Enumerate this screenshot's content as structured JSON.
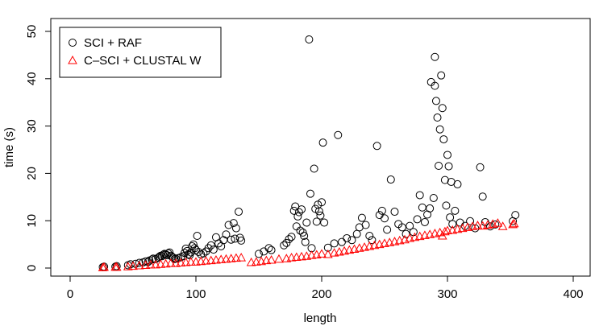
{
  "chart_data": {
    "type": "scatter",
    "title": "",
    "xlabel": "length",
    "ylabel": "time (s)",
    "xlim": [
      0,
      400
    ],
    "ylim": [
      0,
      50
    ],
    "x_ticks": [
      "0",
      "100",
      "200",
      "300",
      "400"
    ],
    "y_ticks": [
      "0",
      "10",
      "20",
      "30",
      "40",
      "50"
    ],
    "grid": false,
    "legend": {
      "position": "top-left"
    },
    "series": [
      {
        "name": "SCI + RAF",
        "marker": "circle",
        "color": "#000000",
        "points": [
          [
            26,
            0.2
          ],
          [
            27,
            0.3
          ],
          [
            36,
            0.3
          ],
          [
            37,
            0.4
          ],
          [
            46,
            0.6
          ],
          [
            48,
            0.8
          ],
          [
            52,
            0.9
          ],
          [
            55,
            1.1
          ],
          [
            58,
            1.2
          ],
          [
            60,
            1.4
          ],
          [
            62,
            1.3
          ],
          [
            63,
            1.6
          ],
          [
            65,
            1.8
          ],
          [
            66,
            2.0
          ],
          [
            68,
            1.9
          ],
          [
            70,
            2.2
          ],
          [
            71,
            2.4
          ],
          [
            72,
            2.6
          ],
          [
            73,
            2.5
          ],
          [
            74,
            2.8
          ],
          [
            75,
            3.0
          ],
          [
            76,
            2.9
          ],
          [
            77,
            2.7
          ],
          [
            78,
            3.1
          ],
          [
            79,
            3.3
          ],
          [
            80,
            2.6
          ],
          [
            81,
            2.4
          ],
          [
            82,
            2.2
          ],
          [
            83,
            1.9
          ],
          [
            84,
            2.0
          ],
          [
            86,
            2.1
          ],
          [
            88,
            2.3
          ],
          [
            90,
            2.5
          ],
          [
            91,
            3.2
          ],
          [
            92,
            4.1
          ],
          [
            93,
            3.6
          ],
          [
            94,
            2.9
          ],
          [
            95,
            2.7
          ],
          [
            96,
            3.3
          ],
          [
            97,
            4.6
          ],
          [
            98,
            5.0
          ],
          [
            99,
            4.2
          ],
          [
            100,
            3.8
          ],
          [
            101,
            6.8
          ],
          [
            102,
            3.4
          ],
          [
            104,
            2.9
          ],
          [
            106,
            3.1
          ],
          [
            108,
            3.5
          ],
          [
            110,
            4.2
          ],
          [
            112,
            4.8
          ],
          [
            114,
            3.9
          ],
          [
            116,
            6.5
          ],
          [
            118,
            5.2
          ],
          [
            120,
            4.6
          ],
          [
            122,
            5.9
          ],
          [
            124,
            7.1
          ],
          [
            126,
            9.1
          ],
          [
            128,
            6.0
          ],
          [
            130,
            9.5
          ],
          [
            131,
            6.2
          ],
          [
            132,
            8.4
          ],
          [
            134,
            11.9
          ],
          [
            135,
            6.4
          ],
          [
            136,
            5.8
          ],
          [
            150,
            3.0
          ],
          [
            154,
            3.5
          ],
          [
            158,
            4.2
          ],
          [
            160,
            3.8
          ],
          [
            170,
            4.8
          ],
          [
            172,
            5.3
          ],
          [
            174,
            6.1
          ],
          [
            176,
            6.6
          ],
          [
            178,
            12.1
          ],
          [
            179,
            13.0
          ],
          [
            180,
            8.8
          ],
          [
            181,
            10.9
          ],
          [
            182,
            11.8
          ],
          [
            183,
            7.9
          ],
          [
            184,
            12.4
          ],
          [
            185,
            7.5
          ],
          [
            186,
            6.8
          ],
          [
            187,
            5.5
          ],
          [
            188,
            9.6
          ],
          [
            190,
            48.3
          ],
          [
            191,
            15.7
          ],
          [
            192,
            4.2
          ],
          [
            194,
            21.0
          ],
          [
            195,
            12.5
          ],
          [
            196,
            9.8
          ],
          [
            197,
            13.4
          ],
          [
            198,
            12.0
          ],
          [
            199,
            11.1
          ],
          [
            200,
            13.9
          ],
          [
            201,
            26.5
          ],
          [
            202,
            9.6
          ],
          [
            205,
            4.3
          ],
          [
            210,
            5.2
          ],
          [
            213,
            28.1
          ],
          [
            216,
            5.5
          ],
          [
            220,
            6.3
          ],
          [
            224,
            5.9
          ],
          [
            228,
            7.2
          ],
          [
            230,
            8.6
          ],
          [
            232,
            10.6
          ],
          [
            235,
            9.1
          ],
          [
            238,
            6.8
          ],
          [
            240,
            5.9
          ],
          [
            244,
            25.8
          ],
          [
            246,
            11.2
          ],
          [
            248,
            12.1
          ],
          [
            250,
            10.5
          ],
          [
            252,
            8.1
          ],
          [
            255,
            18.7
          ],
          [
            258,
            11.9
          ],
          [
            261,
            9.3
          ],
          [
            264,
            8.6
          ],
          [
            267,
            7.2
          ],
          [
            270,
            8.9
          ],
          [
            273,
            7.6
          ],
          [
            276,
            10.3
          ],
          [
            278,
            15.4
          ],
          [
            280,
            12.8
          ],
          [
            282,
            9.7
          ],
          [
            284,
            11.3
          ],
          [
            286,
            12.6
          ],
          [
            287,
            39.3
          ],
          [
            289,
            14.8
          ],
          [
            290,
            38.5
          ],
          [
            291,
            35.3
          ],
          [
            292,
            31.8
          ],
          [
            293,
            21.6
          ],
          [
            294,
            29.3
          ],
          [
            295,
            40.7
          ],
          [
            296,
            33.8
          ],
          [
            297,
            27.2
          ],
          [
            298,
            18.6
          ],
          [
            299,
            13.2
          ],
          [
            300,
            23.9
          ],
          [
            301,
            21.5
          ],
          [
            302,
            10.7
          ],
          [
            303,
            18.2
          ],
          [
            304,
            9.3
          ],
          [
            306,
            12.1
          ],
          [
            308,
            17.7
          ],
          [
            310,
            9.6
          ],
          [
            314,
            8.9
          ],
          [
            318,
            9.9
          ],
          [
            322,
            8.4
          ],
          [
            326,
            21.3
          ],
          [
            328,
            15.1
          ],
          [
            330,
            9.7
          ],
          [
            334,
            8.8
          ],
          [
            338,
            9.2
          ],
          [
            352,
            9.9
          ],
          [
            354,
            11.2
          ],
          [
            290,
            44.6
          ]
        ]
      },
      {
        "name": "C–SCI + CLUSTAL W",
        "marker": "triangle",
        "color": "#ff0000",
        "points": [
          [
            26,
            0.1
          ],
          [
            27,
            0.2
          ],
          [
            36,
            0.2
          ],
          [
            37,
            0.2
          ],
          [
            46,
            0.3
          ],
          [
            50,
            0.4
          ],
          [
            55,
            0.5
          ],
          [
            60,
            0.6
          ],
          [
            64,
            0.7
          ],
          [
            68,
            0.7
          ],
          [
            72,
            0.8
          ],
          [
            76,
            0.9
          ],
          [
            80,
            1.0
          ],
          [
            84,
            1.0
          ],
          [
            88,
            1.1
          ],
          [
            92,
            1.2
          ],
          [
            96,
            1.3
          ],
          [
            100,
            1.3
          ],
          [
            104,
            1.4
          ],
          [
            108,
            1.5
          ],
          [
            112,
            1.6
          ],
          [
            116,
            1.7
          ],
          [
            120,
            1.8
          ],
          [
            124,
            1.9
          ],
          [
            128,
            2.0
          ],
          [
            132,
            2.1
          ],
          [
            136,
            2.2
          ],
          [
            144,
            1.2
          ],
          [
            148,
            1.3
          ],
          [
            152,
            1.4
          ],
          [
            156,
            1.6
          ],
          [
            160,
            1.7
          ],
          [
            166,
            1.9
          ],
          [
            172,
            2.0
          ],
          [
            176,
            2.2
          ],
          [
            180,
            2.3
          ],
          [
            184,
            2.4
          ],
          [
            188,
            2.5
          ],
          [
            192,
            2.7
          ],
          [
            196,
            2.8
          ],
          [
            200,
            3.0
          ],
          [
            205,
            2.9
          ],
          [
            210,
            3.2
          ],
          [
            214,
            3.4
          ],
          [
            218,
            3.6
          ],
          [
            222,
            3.8
          ],
          [
            226,
            4.0
          ],
          [
            230,
            4.2
          ],
          [
            234,
            4.4
          ],
          [
            238,
            4.6
          ],
          [
            242,
            4.8
          ],
          [
            246,
            5.0
          ],
          [
            250,
            5.2
          ],
          [
            254,
            5.4
          ],
          [
            258,
            5.6
          ],
          [
            262,
            5.8
          ],
          [
            266,
            6.0
          ],
          [
            270,
            6.3
          ],
          [
            274,
            6.5
          ],
          [
            278,
            6.7
          ],
          [
            282,
            6.9
          ],
          [
            286,
            7.1
          ],
          [
            290,
            7.3
          ],
          [
            294,
            7.5
          ],
          [
            298,
            7.7
          ],
          [
            300,
            7.9
          ],
          [
            304,
            8.0
          ],
          [
            308,
            8.2
          ],
          [
            312,
            8.4
          ],
          [
            316,
            8.6
          ],
          [
            320,
            8.8
          ],
          [
            324,
            9.0
          ],
          [
            328,
            8.9
          ],
          [
            332,
            9.1
          ],
          [
            336,
            9.3
          ],
          [
            340,
            9.5
          ],
          [
            352,
            9.2
          ],
          [
            353,
            9.4
          ],
          [
            344,
            8.8
          ],
          [
            296,
            6.8
          ]
        ]
      }
    ]
  }
}
